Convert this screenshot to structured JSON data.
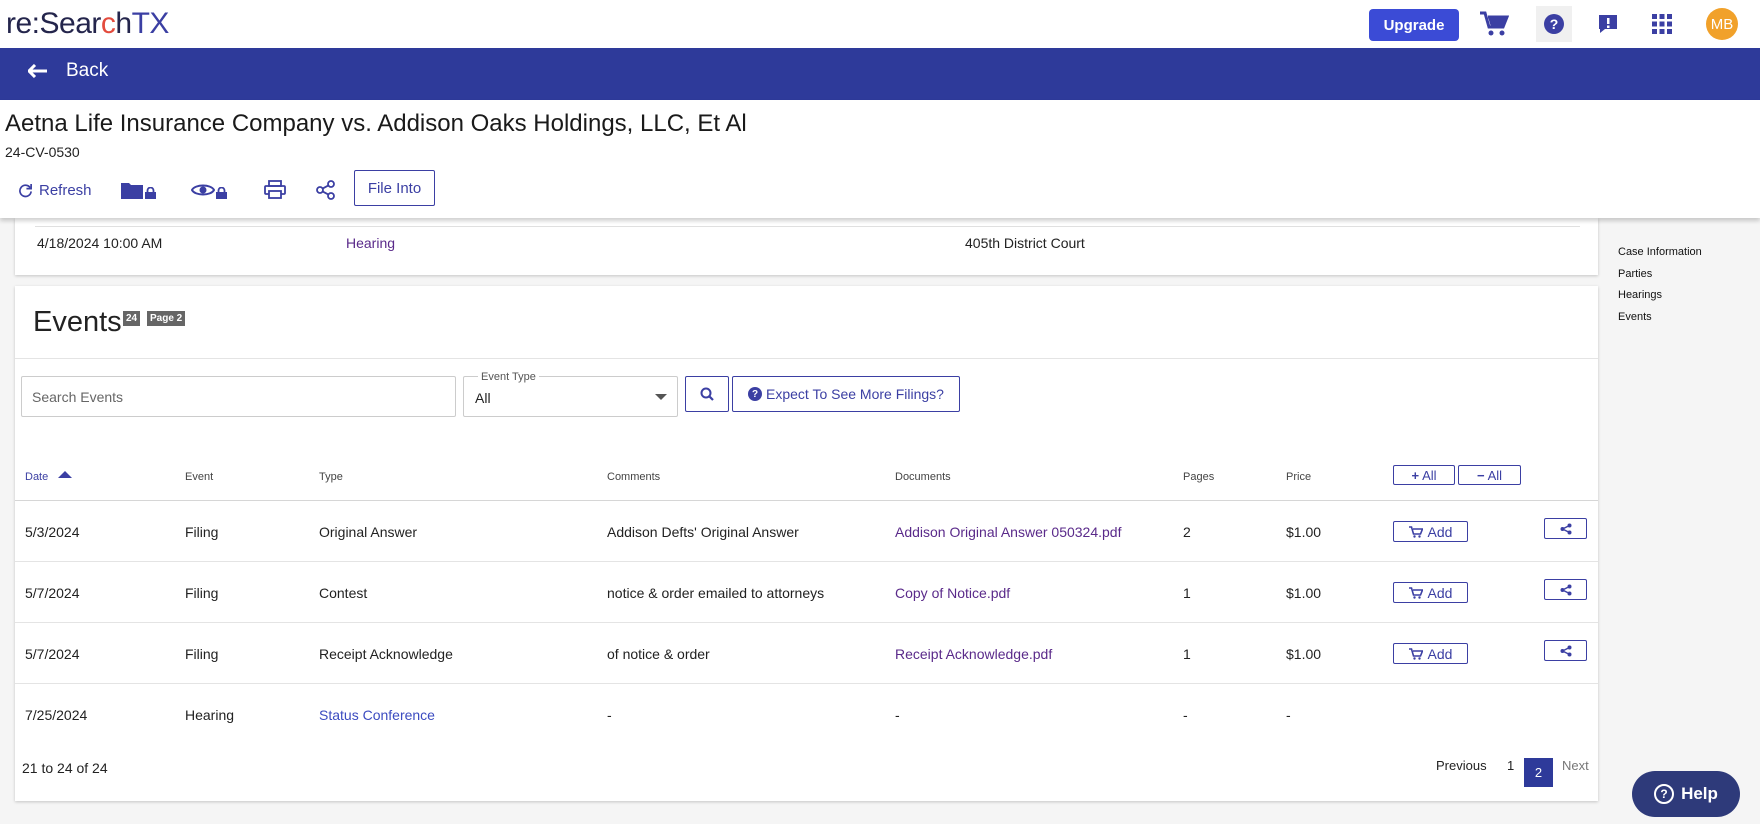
{
  "app": {
    "logo": {
      "re": "re:",
      "sear": "Sear",
      "c": "c",
      "h": "h",
      "tx": "TX"
    },
    "upgrade_label": "Upgrade",
    "avatar_initials": "MB",
    "accent_color": "#2e3a9a"
  },
  "back": {
    "label": "Back"
  },
  "case": {
    "title": "Aetna Life Insurance Company vs. Addison Oaks Holdings, LLC, Et Al",
    "number": "24-CV-0530",
    "toolbar": {
      "refresh_label": "Refresh",
      "file_into_label": "File Into"
    }
  },
  "hearing": {
    "date": "4/18/2024 10:00 AM",
    "type": "Hearing",
    "court": "405th District Court"
  },
  "rightnav": {
    "items": [
      "Case Information",
      "Parties",
      "Hearings",
      "Events"
    ]
  },
  "events": {
    "title": "Events",
    "count_badge": "24",
    "page_badge": "Page 2",
    "search": {
      "placeholder": "Search Events"
    },
    "event_type": {
      "label": "Event Type",
      "value": "All"
    },
    "expect_label": "Expect To See More Filings?",
    "columns": {
      "date": "Date",
      "event": "Event",
      "type": "Type",
      "comments": "Comments",
      "documents": "Documents",
      "pages": "Pages",
      "price": "Price",
      "expand_all": "All",
      "collapse_all": "All"
    },
    "add_label": "Add",
    "rows": [
      {
        "date": "5/3/2024",
        "event": "Filing",
        "type": "Original Answer",
        "comments": "Addison Defts' Original Answer",
        "documents": "Addison Original Answer 050324.pdf",
        "pages": "2",
        "price": "$1.00"
      },
      {
        "date": "5/7/2024",
        "event": "Filing",
        "type": "Contest",
        "comments": "notice & order emailed to attorneys",
        "documents": "Copy of Notice.pdf",
        "pages": "1",
        "price": "$1.00"
      },
      {
        "date": "5/7/2024",
        "event": "Filing",
        "type": "Receipt Acknowledge",
        "comments": "of notice & order",
        "documents": "Receipt Acknowledge.pdf",
        "pages": "1",
        "price": "$1.00"
      },
      {
        "date": "7/25/2024",
        "event": "Hearing",
        "type": "Status Conference",
        "comments": "-",
        "documents": "-",
        "pages": "-",
        "price": "-"
      }
    ],
    "pagination": {
      "info": "21 to 24 of 24",
      "previous": "Previous",
      "pages": [
        "1",
        "2"
      ],
      "current": "2",
      "next": "Next"
    }
  },
  "help_label": "Help"
}
